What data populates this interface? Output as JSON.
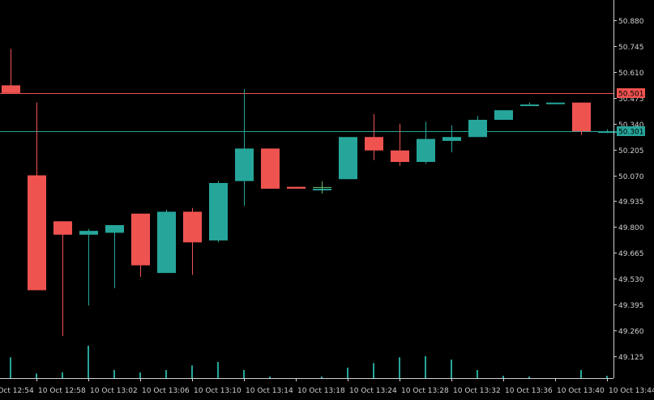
{
  "colors": {
    "background": "#000000",
    "bull": "#26a69a",
    "bear": "#ef5350",
    "axis": "#d0d0d0",
    "volume": "#26a69a",
    "crosshair_marker": "#66bb6a"
  },
  "price_lines": [
    {
      "label": "50.501",
      "value": 50.501,
      "color": "#ef5350"
    },
    {
      "label": "50.301",
      "value": 50.301,
      "color": "#26a69a"
    }
  ],
  "chart_data": {
    "type": "candlestick",
    "title": "",
    "xlabel": "",
    "ylabel": "",
    "ylim": [
      49.06,
      50.98
    ],
    "grid": false,
    "y_ticks": [
      "50.880",
      "50.745",
      "50.610",
      "50.475",
      "50.340",
      "50.205",
      "50.070",
      "49.935",
      "49.800",
      "49.665",
      "49.530",
      "49.395",
      "49.260",
      "49.125"
    ],
    "x_ticks": [
      "10 Oct 12:54",
      "10 Oct 12:58",
      "10 Oct 13:02",
      "10 Oct 13:06",
      "10 Oct 13:10",
      "10 Oct 13:14",
      "10 Oct 13:18",
      "10 Oct 13:24",
      "10 Oct 13:28",
      "10 Oct 13:32",
      "10 Oct 13:36",
      "10 Oct 13:40",
      "10 Oct 13:44"
    ],
    "candles": [
      {
        "open": 50.54,
        "high": 50.73,
        "low": 50.5,
        "close": 50.5,
        "volume": 18
      },
      {
        "open": 50.07,
        "high": 50.45,
        "low": 49.47,
        "close": 49.47,
        "volume": 4
      },
      {
        "open": 49.83,
        "high": 49.83,
        "low": 49.23,
        "close": 49.76,
        "volume": 5
      },
      {
        "open": 49.76,
        "high": 49.79,
        "low": 49.39,
        "close": 49.78,
        "volume": 28
      },
      {
        "open": 49.77,
        "high": 49.81,
        "low": 49.48,
        "close": 49.81,
        "volume": 7
      },
      {
        "open": 49.87,
        "high": 49.87,
        "low": 49.54,
        "close": 49.6,
        "volume": 5
      },
      {
        "open": 49.56,
        "high": 49.89,
        "low": 49.56,
        "close": 49.88,
        "volume": 7
      },
      {
        "open": 49.88,
        "high": 49.9,
        "low": 49.55,
        "close": 49.72,
        "volume": 11
      },
      {
        "open": 49.73,
        "high": 50.04,
        "low": 49.72,
        "close": 50.03,
        "volume": 14
      },
      {
        "open": 50.04,
        "high": 50.52,
        "low": 49.91,
        "close": 50.21,
        "volume": 7
      },
      {
        "open": 50.21,
        "high": 50.21,
        "low": 50.0,
        "close": 50.0,
        "volume": 1
      },
      {
        "open": 50.01,
        "high": 50.01,
        "low": 50.0,
        "close": 50.0,
        "volume": 0
      },
      {
        "open": 50.0,
        "high": 50.03,
        "low": 49.98,
        "close": 50.0,
        "volume": 1
      },
      {
        "open": 50.05,
        "high": 50.27,
        "low": 50.05,
        "close": 50.27,
        "volume": 9
      },
      {
        "open": 50.27,
        "high": 50.39,
        "low": 50.15,
        "close": 50.2,
        "volume": 13
      },
      {
        "open": 50.2,
        "high": 50.34,
        "low": 50.12,
        "close": 50.14,
        "volume": 18
      },
      {
        "open": 50.14,
        "high": 50.35,
        "low": 50.13,
        "close": 50.26,
        "volume": 19
      },
      {
        "open": 50.25,
        "high": 50.33,
        "low": 50.19,
        "close": 50.27,
        "volume": 16
      },
      {
        "open": 50.27,
        "high": 50.38,
        "low": 50.27,
        "close": 50.36,
        "volume": 7
      },
      {
        "open": 50.36,
        "high": 50.41,
        "low": 50.36,
        "close": 50.41,
        "volume": 2
      },
      {
        "open": 50.44,
        "high": 50.45,
        "low": 50.44,
        "close": 50.44,
        "volume": 1
      },
      {
        "open": 50.45,
        "high": 50.45,
        "low": 50.45,
        "close": 50.45,
        "volume": 0
      },
      {
        "open": 50.45,
        "high": 50.45,
        "low": 50.28,
        "close": 50.3,
        "volume": 7
      },
      {
        "open": 50.3,
        "high": 50.31,
        "low": 50.29,
        "close": 50.3,
        "volume": 2
      }
    ]
  }
}
